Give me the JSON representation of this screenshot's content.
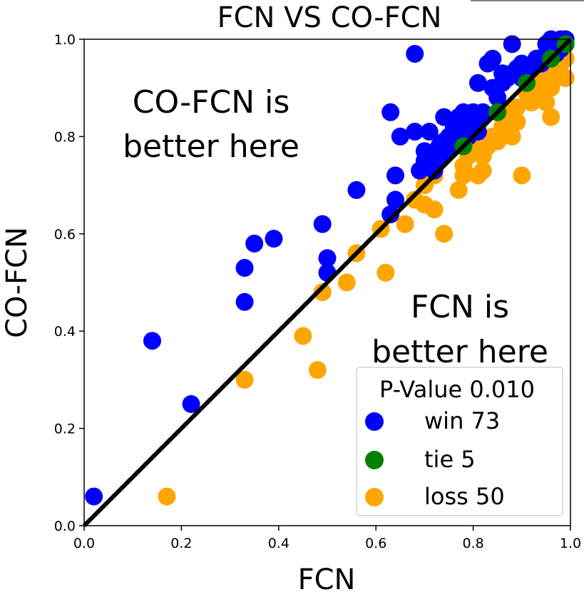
{
  "chart_data": {
    "type": "scatter",
    "title": "FCN VS CO-FCN",
    "xlabel": "FCN",
    "ylabel": "CO-FCN",
    "xlim": [
      0.0,
      1.0
    ],
    "ylim": [
      0.0,
      1.0
    ],
    "xticks": [
      "0.0",
      "0.2",
      "0.4",
      "0.6",
      "0.8",
      "1.0"
    ],
    "yticks": [
      "0.0",
      "0.2",
      "0.4",
      "0.6",
      "0.8",
      "1.0"
    ],
    "diagonal": {
      "from": [
        0,
        0
      ],
      "to": [
        1,
        1
      ],
      "color": "#000000"
    },
    "annotations": [
      {
        "lines": [
          "CO-FCN is",
          "better here"
        ],
        "position": "upper-left"
      },
      {
        "lines": [
          "FCN is",
          "better here"
        ],
        "position": "lower-right"
      }
    ],
    "legend": {
      "title": "P-Value 0.010",
      "placement": "lower-right",
      "entries": [
        {
          "label": "win 73",
          "color": "#0000ff"
        },
        {
          "label": "tie 5",
          "color": "#008000"
        },
        {
          "label": "loss 50",
          "color": "#ffa500"
        }
      ]
    },
    "series": [
      {
        "name": "win",
        "color": "#0000ff",
        "points": [
          [
            0.02,
            0.06
          ],
          [
            0.14,
            0.38
          ],
          [
            0.22,
            0.25
          ],
          [
            0.33,
            0.46
          ],
          [
            0.33,
            0.53
          ],
          [
            0.35,
            0.58
          ],
          [
            0.39,
            0.59
          ],
          [
            0.49,
            0.62
          ],
          [
            0.5,
            0.55
          ],
          [
            0.5,
            0.52
          ],
          [
            0.56,
            0.69
          ],
          [
            0.63,
            0.64
          ],
          [
            0.63,
            0.85
          ],
          [
            0.64,
            0.72
          ],
          [
            0.64,
            0.67
          ],
          [
            0.65,
            0.8
          ],
          [
            0.68,
            0.97
          ],
          [
            0.68,
            0.81
          ],
          [
            0.69,
            0.73
          ],
          [
            0.7,
            0.77
          ],
          [
            0.7,
            0.75
          ],
          [
            0.71,
            0.81
          ],
          [
            0.71,
            0.74
          ],
          [
            0.72,
            0.73
          ],
          [
            0.72,
            0.76
          ],
          [
            0.73,
            0.78
          ],
          [
            0.73,
            0.75
          ],
          [
            0.74,
            0.79
          ],
          [
            0.74,
            0.84
          ],
          [
            0.75,
            0.8
          ],
          [
            0.75,
            0.77
          ],
          [
            0.76,
            0.82
          ],
          [
            0.76,
            0.78
          ],
          [
            0.77,
            0.8
          ],
          [
            0.77,
            0.84
          ],
          [
            0.78,
            0.82
          ],
          [
            0.78,
            0.85
          ],
          [
            0.79,
            0.83
          ],
          [
            0.79,
            0.8
          ],
          [
            0.8,
            0.85
          ],
          [
            0.8,
            0.82
          ],
          [
            0.81,
            0.81
          ],
          [
            0.81,
            0.91
          ],
          [
            0.82,
            0.84
          ],
          [
            0.82,
            0.85
          ],
          [
            0.83,
            0.95
          ],
          [
            0.84,
            0.9
          ],
          [
            0.84,
            0.96
          ],
          [
            0.85,
            0.88
          ],
          [
            0.86,
            0.91
          ],
          [
            0.87,
            0.92
          ],
          [
            0.88,
            0.93
          ],
          [
            0.88,
            0.99
          ],
          [
            0.89,
            0.94
          ],
          [
            0.9,
            0.92
          ],
          [
            0.9,
            0.95
          ],
          [
            0.91,
            0.93
          ],
          [
            0.92,
            0.94
          ],
          [
            0.93,
            0.96
          ],
          [
            0.94,
            0.95
          ],
          [
            0.95,
            0.97
          ],
          [
            0.95,
            0.99
          ],
          [
            0.96,
            0.98
          ],
          [
            0.96,
            1.0
          ],
          [
            0.97,
            0.97
          ],
          [
            0.97,
            0.99
          ],
          [
            0.98,
            1.0
          ],
          [
            0.98,
            0.98
          ],
          [
            0.99,
            0.99
          ],
          [
            0.99,
            1.0
          ],
          [
            0.93,
            0.95
          ],
          [
            0.86,
            0.93
          ],
          [
            0.79,
            0.84
          ]
        ]
      },
      {
        "name": "tie",
        "color": "#008000",
        "points": [
          [
            0.91,
            0.91
          ],
          [
            0.78,
            0.78
          ],
          [
            0.85,
            0.85
          ],
          [
            0.96,
            0.96
          ],
          [
            0.99,
            0.99
          ]
        ]
      },
      {
        "name": "loss",
        "color": "#ffa500",
        "points": [
          [
            0.17,
            0.06
          ],
          [
            0.33,
            0.3
          ],
          [
            0.45,
            0.39
          ],
          [
            0.48,
            0.32
          ],
          [
            0.49,
            0.48
          ],
          [
            0.54,
            0.5
          ],
          [
            0.56,
            0.56
          ],
          [
            0.61,
            0.61
          ],
          [
            0.62,
            0.52
          ],
          [
            0.66,
            0.62
          ],
          [
            0.68,
            0.67
          ],
          [
            0.7,
            0.66
          ],
          [
            0.72,
            0.65
          ],
          [
            0.7,
            0.7
          ],
          [
            0.72,
            0.72
          ],
          [
            0.74,
            0.6
          ],
          [
            0.77,
            0.69
          ],
          [
            0.78,
            0.72
          ],
          [
            0.78,
            0.74
          ],
          [
            0.79,
            0.76
          ],
          [
            0.8,
            0.78
          ],
          [
            0.81,
            0.72
          ],
          [
            0.82,
            0.76
          ],
          [
            0.82,
            0.73
          ],
          [
            0.83,
            0.78
          ],
          [
            0.84,
            0.8
          ],
          [
            0.85,
            0.79
          ],
          [
            0.86,
            0.82
          ],
          [
            0.87,
            0.84
          ],
          [
            0.88,
            0.85
          ],
          [
            0.89,
            0.86
          ],
          [
            0.89,
            0.83
          ],
          [
            0.9,
            0.72
          ],
          [
            0.91,
            0.89
          ],
          [
            0.92,
            0.87
          ],
          [
            0.92,
            0.91
          ],
          [
            0.93,
            0.9
          ],
          [
            0.94,
            0.88
          ],
          [
            0.94,
            0.92
          ],
          [
            0.95,
            0.87
          ],
          [
            0.95,
            0.93
          ],
          [
            0.96,
            0.9
          ],
          [
            0.96,
            0.84
          ],
          [
            0.97,
            0.94
          ],
          [
            0.97,
            0.92
          ],
          [
            0.98,
            0.95
          ],
          [
            0.98,
            0.93
          ],
          [
            0.99,
            0.96
          ],
          [
            0.99,
            0.92
          ],
          [
            0.88,
            0.8
          ]
        ]
      }
    ]
  }
}
